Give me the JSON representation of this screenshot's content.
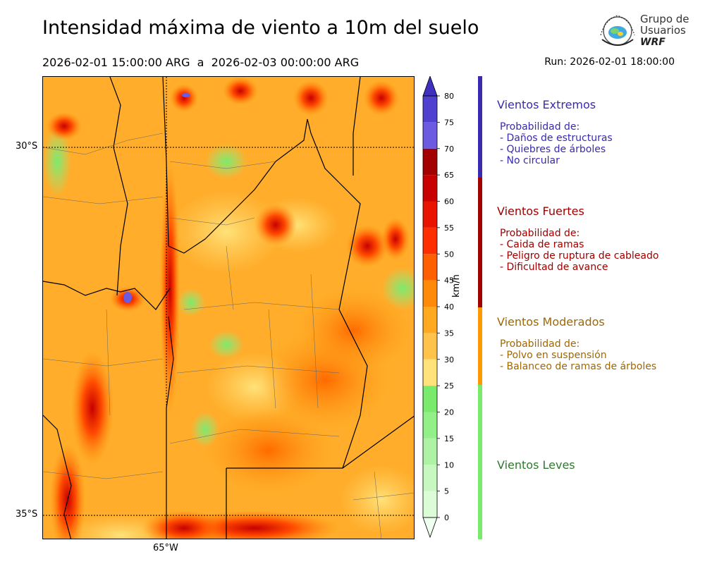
{
  "header": {
    "title": "Intensidad máxima de viento a 10m del suelo",
    "period": "2026-02-01 15:00:00 ARG  a  2026-02-03 00:00:00 ARG",
    "run": "Run: 2026-02-01 18:00:00"
  },
  "logo": {
    "line1": "Grupo de",
    "line2": "Usuarios",
    "line3": "WRF"
  },
  "map": {
    "lat_labels": [
      "30°S",
      "35°S"
    ],
    "lon_labels": [
      "65°W"
    ]
  },
  "colorbar": {
    "unit": "km/h",
    "ticks": [
      "0",
      "5",
      "10",
      "15",
      "20",
      "25",
      "30",
      "35",
      "40",
      "45",
      "50",
      "55",
      "60",
      "65",
      "70",
      "75",
      "80"
    ],
    "colors": [
      "#f0fff0",
      "#dcfcd8",
      "#c6f8bf",
      "#aef3a5",
      "#93ef88",
      "#7aea6c",
      "#ffe27a",
      "#ffc24a",
      "#ffa920",
      "#ff8a0a",
      "#ff5f00",
      "#ff2e00",
      "#e81400",
      "#c80000",
      "#a30000",
      "#6c5ae0",
      "#5040d0",
      "#4030c0"
    ],
    "levels": [
      0,
      5,
      10,
      15,
      20,
      25,
      30,
      35,
      40,
      45,
      50,
      55,
      60,
      65,
      70,
      75,
      80
    ]
  },
  "categories": [
    {
      "name": "Vientos Extremos",
      "color": "#3a2ab0",
      "lines": [
        "Probabilidad de:",
        "- Daños de estructuras",
        "- Quiebres de árboles",
        "- No circular"
      ]
    },
    {
      "name": "Vientos Fuertes",
      "color": "#a00000",
      "lines": [
        "Probabilidad de:",
        "- Caida de ramas",
        "- Peligro de ruptura de cableado",
        "- Dificultad de avance"
      ]
    },
    {
      "name": "Vientos Moderados",
      "color": "#a06800",
      "lines": [
        "Probabilidad de:",
        "- Polvo en suspensión",
        "- Balanceo de ramas de árboles"
      ]
    },
    {
      "name": "Vientos Leves",
      "color": "#2e7a2e",
      "lines": []
    }
  ],
  "category_bar_colors": [
    "#3a2ab0",
    "#a00000",
    "#ff9900",
    "#7aea6c"
  ]
}
